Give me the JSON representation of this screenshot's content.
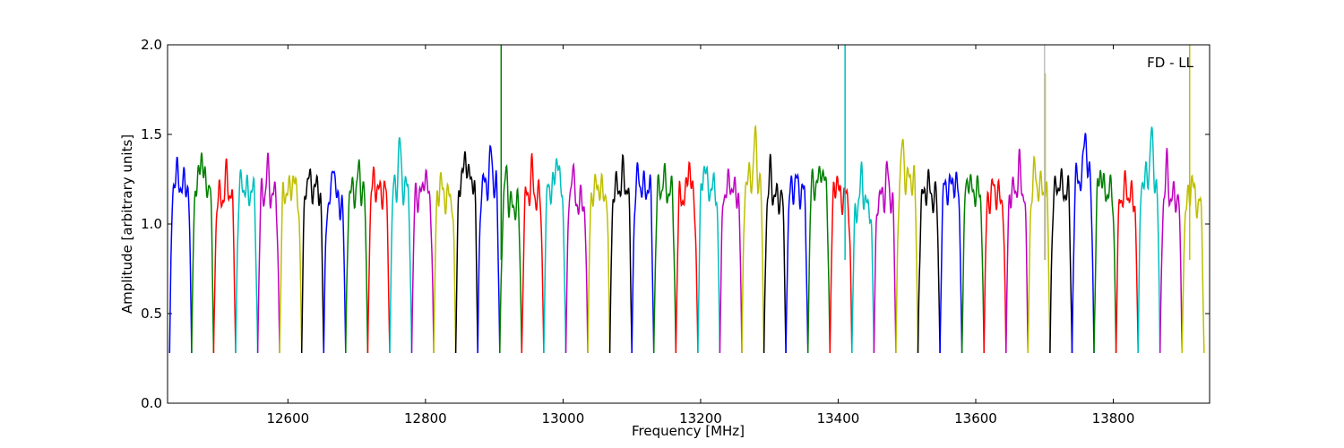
{
  "chart_data": {
    "type": "line",
    "title": "",
    "annotation": "FD - LL",
    "xlabel": "Frequency [MHz]",
    "ylabel": "Amplitude [arbitrary units]",
    "xlim": [
      12425,
      13940
    ],
    "ylim": [
      0.0,
      2.0
    ],
    "xticks": [
      12600,
      12800,
      13000,
      13200,
      13400,
      13600,
      13800
    ],
    "yticks": [
      0.0,
      0.5,
      1.0,
      1.5,
      2.0
    ],
    "xtick_labels": [
      "12600",
      "12800",
      "13000",
      "13200",
      "13400",
      "13600",
      "13800"
    ],
    "ytick_labels": [
      "0.0",
      "0.5",
      "1.0",
      "1.5",
      "2.0"
    ],
    "grid": false,
    "legend": "none",
    "series_colors": [
      "#0000ff",
      "#008000",
      "#ff0000",
      "#00bfbf",
      "#bf00bf",
      "#bfbf00",
      "#000000"
    ],
    "channel_width_mhz": 32,
    "channels": [
      {
        "x_start": 12428,
        "x_end": 12460,
        "color": "#0000ff",
        "level": 1.22,
        "peak": 1.3
      },
      {
        "x_start": 12460,
        "x_end": 12492,
        "color": "#008000",
        "level": 1.22,
        "peak": 1.42
      },
      {
        "x_start": 12492,
        "x_end": 12524,
        "color": "#ff0000",
        "level": 1.15,
        "peak": 1.29
      },
      {
        "x_start": 12524,
        "x_end": 12556,
        "color": "#00bfbf",
        "level": 1.18,
        "peak": 1.24
      },
      {
        "x_start": 12556,
        "x_end": 12588,
        "color": "#bf00bf",
        "level": 1.16,
        "peak": 1.32
      },
      {
        "x_start": 12588,
        "x_end": 12620,
        "color": "#bfbf00",
        "level": 1.18,
        "peak": 1.26
      },
      {
        "x_start": 12620,
        "x_end": 12652,
        "color": "#000000",
        "level": 1.2,
        "peak": 1.27
      },
      {
        "x_start": 12652,
        "x_end": 12684,
        "color": "#0000ff",
        "level": 1.12,
        "peak": 1.38
      },
      {
        "x_start": 12684,
        "x_end": 12716,
        "color": "#008000",
        "level": 1.18,
        "peak": 1.3
      },
      {
        "x_start": 12716,
        "x_end": 12748,
        "color": "#ff0000",
        "level": 1.18,
        "peak": 1.25
      },
      {
        "x_start": 12748,
        "x_end": 12780,
        "color": "#00bfbf",
        "level": 1.2,
        "peak": 1.46
      },
      {
        "x_start": 12780,
        "x_end": 12812,
        "color": "#bf00bf",
        "level": 1.16,
        "peak": 1.3
      },
      {
        "x_start": 12812,
        "x_end": 12844,
        "color": "#bfbf00",
        "level": 1.15,
        "peak": 1.25
      },
      {
        "x_start": 12844,
        "x_end": 12876,
        "color": "#000000",
        "level": 1.25,
        "peak": 1.4
      },
      {
        "x_start": 12876,
        "x_end": 12908,
        "color": "#0000ff",
        "level": 1.22,
        "peak": 1.4
      },
      {
        "x_start": 12908,
        "x_end": 12940,
        "color": "#008000",
        "level": 1.1,
        "peak": 1.3
      },
      {
        "x_start": 12940,
        "x_end": 12972,
        "color": "#ff0000",
        "level": 1.15,
        "peak": 1.31
      },
      {
        "x_start": 12972,
        "x_end": 13004,
        "color": "#00bfbf",
        "level": 1.2,
        "peak": 1.41
      },
      {
        "x_start": 13004,
        "x_end": 13036,
        "color": "#bf00bf",
        "level": 1.12,
        "peak": 1.34
      },
      {
        "x_start": 13036,
        "x_end": 13068,
        "color": "#bfbf00",
        "level": 1.18,
        "peak": 1.23
      },
      {
        "x_start": 13068,
        "x_end": 13100,
        "color": "#000000",
        "level": 1.2,
        "peak": 1.29
      },
      {
        "x_start": 13100,
        "x_end": 13132,
        "color": "#0000ff",
        "level": 1.2,
        "peak": 1.27
      },
      {
        "x_start": 13132,
        "x_end": 13164,
        "color": "#008000",
        "level": 1.18,
        "peak": 1.27
      },
      {
        "x_start": 13164,
        "x_end": 13196,
        "color": "#ff0000",
        "level": 1.15,
        "peak": 1.37
      },
      {
        "x_start": 13196,
        "x_end": 13228,
        "color": "#00bfbf",
        "level": 1.2,
        "peak": 1.35
      },
      {
        "x_start": 13228,
        "x_end": 13260,
        "color": "#bf00bf",
        "level": 1.18,
        "peak": 1.25
      },
      {
        "x_start": 13260,
        "x_end": 13292,
        "color": "#bfbf00",
        "level": 1.25,
        "peak": 1.49
      },
      {
        "x_start": 13292,
        "x_end": 13324,
        "color": "#000000",
        "level": 1.15,
        "peak": 1.3
      },
      {
        "x_start": 13324,
        "x_end": 13356,
        "color": "#0000ff",
        "level": 1.18,
        "peak": 1.26
      },
      {
        "x_start": 13356,
        "x_end": 13388,
        "color": "#008000",
        "level": 1.22,
        "peak": 1.33
      },
      {
        "x_start": 13388,
        "x_end": 13420,
        "color": "#ff0000",
        "level": 1.15,
        "peak": 1.27
      },
      {
        "x_start": 13420,
        "x_end": 13452,
        "color": "#00bfbf",
        "level": 1.1,
        "peak": 1.3
      },
      {
        "x_start": 13452,
        "x_end": 13484,
        "color": "#bf00bf",
        "level": 1.15,
        "peak": 1.3
      },
      {
        "x_start": 13484,
        "x_end": 13516,
        "color": "#bfbf00",
        "level": 1.25,
        "peak": 1.44
      },
      {
        "x_start": 13516,
        "x_end": 13548,
        "color": "#000000",
        "level": 1.15,
        "peak": 1.25
      },
      {
        "x_start": 13548,
        "x_end": 13580,
        "color": "#0000ff",
        "level": 1.2,
        "peak": 1.25
      },
      {
        "x_start": 13580,
        "x_end": 13612,
        "color": "#008000",
        "level": 1.18,
        "peak": 1.27
      },
      {
        "x_start": 13612,
        "x_end": 13644,
        "color": "#ff0000",
        "level": 1.15,
        "peak": 1.22
      },
      {
        "x_start": 13644,
        "x_end": 13676,
        "color": "#bf00bf",
        "level": 1.18,
        "peak": 1.33
      },
      {
        "x_start": 13676,
        "x_end": 13708,
        "color": "#bfbf00",
        "level": 1.2,
        "peak": 1.3
      },
      {
        "x_start": 13708,
        "x_end": 13740,
        "color": "#000000",
        "level": 1.18,
        "peak": 1.26
      },
      {
        "x_start": 13740,
        "x_end": 13772,
        "color": "#0000ff",
        "level": 1.25,
        "peak": 1.55
      },
      {
        "x_start": 13772,
        "x_end": 13804,
        "color": "#008000",
        "level": 1.18,
        "peak": 1.32
      },
      {
        "x_start": 13804,
        "x_end": 13836,
        "color": "#ff0000",
        "level": 1.15,
        "peak": 1.22
      },
      {
        "x_start": 13836,
        "x_end": 13868,
        "color": "#00bfbf",
        "level": 1.25,
        "peak": 1.52
      },
      {
        "x_start": 13868,
        "x_end": 13900,
        "color": "#bf00bf",
        "level": 1.15,
        "peak": 1.33
      },
      {
        "x_start": 13900,
        "x_end": 13932,
        "color": "#bfbf00",
        "level": 1.12,
        "peak": 1.28
      }
    ],
    "spikes": [
      {
        "x": 12910,
        "y": 2.0,
        "color": "#008000"
      },
      {
        "x": 13410,
        "y": 2.0,
        "color": "#00bfbf"
      },
      {
        "x": 13701,
        "y": 1.84,
        "color": "#bfbf00"
      },
      {
        "x": 13700,
        "y": 2.0,
        "color": "#bfbfbf"
      },
      {
        "x": 13911,
        "y": 2.0,
        "color": "#bfbf00"
      }
    ]
  }
}
